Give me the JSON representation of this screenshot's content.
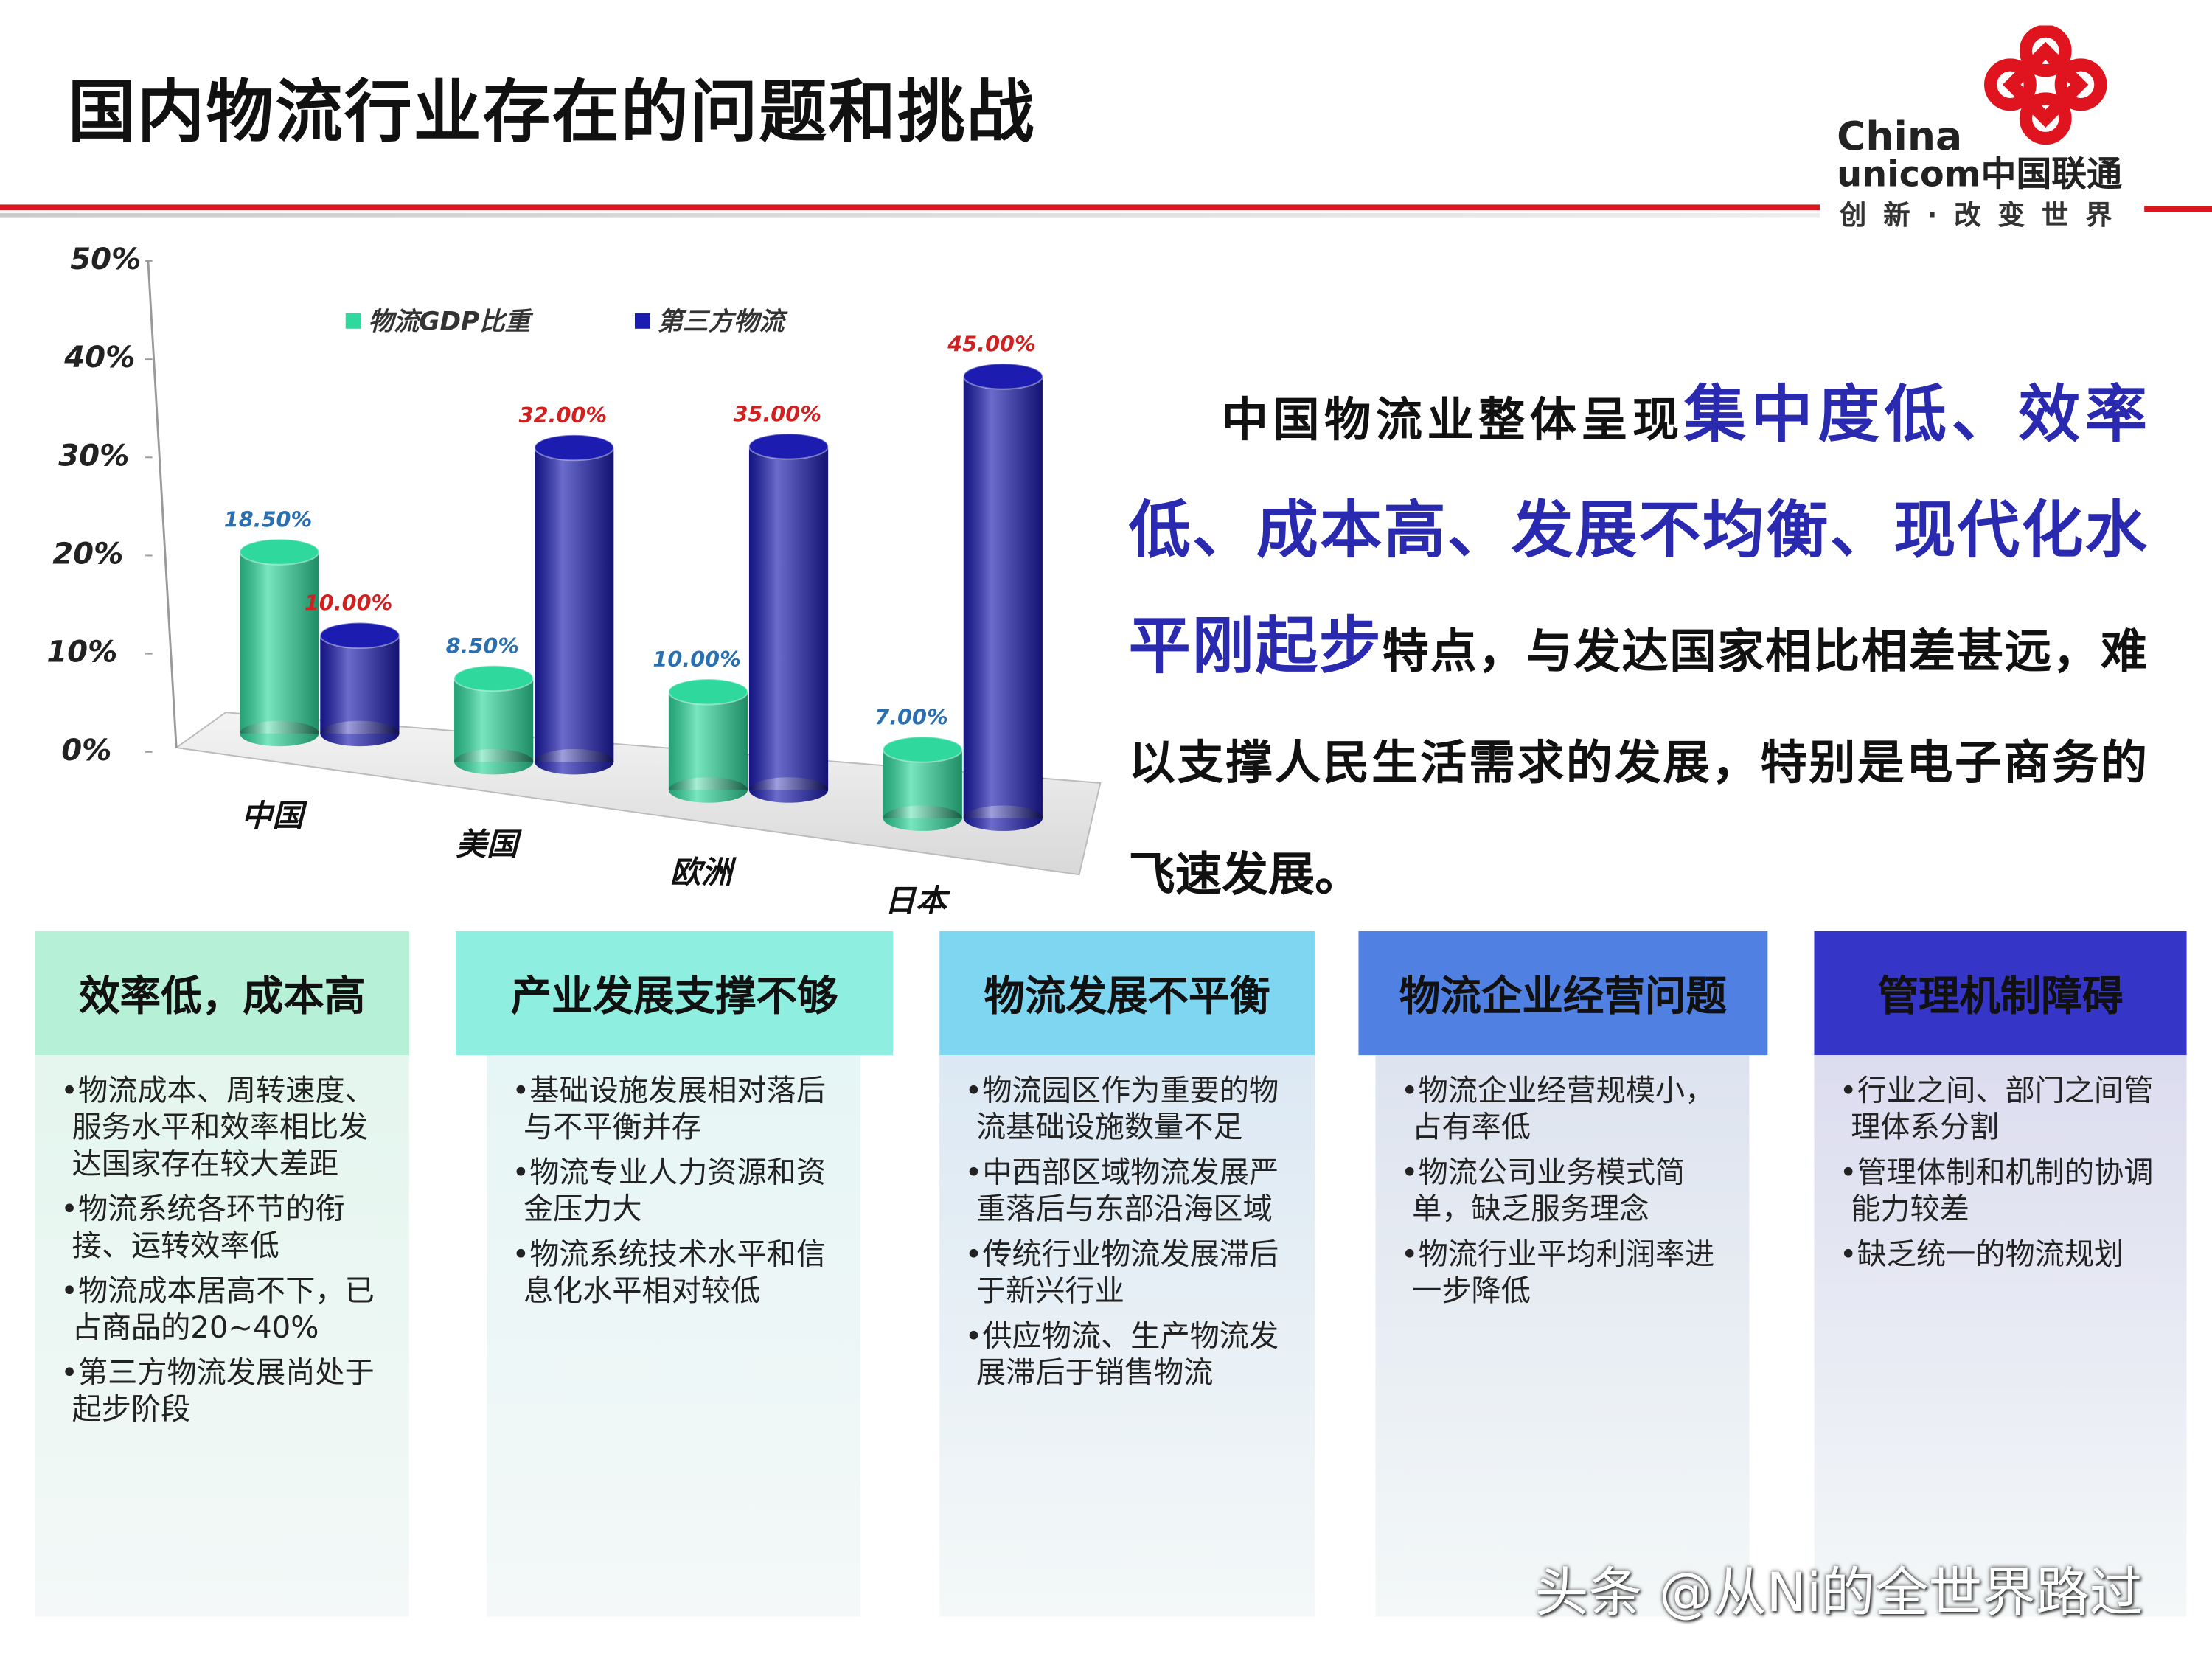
{
  "header": {
    "title": "国内物流行业存在的问题和挑战",
    "logo_line1": "China",
    "logo_line2": "unicom中国联通",
    "logo_slogan": "创新·改变世界"
  },
  "chart_data": {
    "type": "bar",
    "categories": [
      "中国",
      "美国",
      "欧洲",
      "日本"
    ],
    "series": [
      {
        "name": "物流GDP比重",
        "color": "#2fd89c",
        "values": [
          18.5,
          8.5,
          10,
          7
        ],
        "value_labels": [
          "18.50%",
          "8.50%",
          "10.00%",
          "7.00%"
        ],
        "label_color": "#2a6fb0"
      },
      {
        "name": "第三方物流",
        "color": "#1c1cb0",
        "values": [
          10,
          32,
          35,
          45
        ],
        "value_labels": [
          "10.00%",
          "32.00%",
          "35.00%",
          "45.00%"
        ],
        "label_color": "#d02020"
      }
    ],
    "ylim": [
      0,
      50
    ],
    "yticks": [
      {
        "value": 0,
        "label": "0%"
      },
      {
        "value": 10,
        "label": "10%"
      },
      {
        "value": 20,
        "label": "20%"
      },
      {
        "value": 30,
        "label": "30%"
      },
      {
        "value": 40,
        "label": "40%"
      },
      {
        "value": 50,
        "label": "50%"
      }
    ],
    "grid": false
  },
  "summary": {
    "lead": "中国物流业整体呈现",
    "highlight": "集中度低、效率低、成本高、发展不均衡、现代化水平刚起步",
    "rest": "特点，与发达国家相比相差甚远，难以支撑人民生活需求的发展，特别是电子商务的飞速发展。"
  },
  "columns": [
    {
      "title": "效率低，成本高",
      "items": [
        "•物流成本、周转速度、服务水平和效率相比发达国家存在较大差距",
        "•物流系统各环节的衔接、运转效率低",
        "•物流成本居高不下，已占商品的20~40%",
        "•第三方物流发展尚处于起步阶段"
      ]
    },
    {
      "title": "产业发展支撑不够",
      "items": [
        "•基础设施发展相对落后与不平衡并存",
        "•物流专业人力资源和资金压力大",
        "•物流系统技术水平和信息化水平相对较低"
      ]
    },
    {
      "title": "物流发展不平衡",
      "items": [
        "•物流园区作为重要的物流基础设施数量不足",
        "•中西部区域物流发展严重落后与东部沿海区域",
        "•传统行业物流发展滞后于新兴行业",
        "•供应物流、生产物流发展滞后于销售物流"
      ]
    },
    {
      "title": "物流企业经营问题",
      "items": [
        "•物流企业经营规模小，占有率低",
        "•物流公司业务模式简单，缺乏服务理念",
        "•物流行业平均利润率进一步降低"
      ]
    },
    {
      "title": "管理机制障碍",
      "items": [
        "•行业之间、部门之间管理体系分割",
        "•管理体制和机制的协调能力较差",
        "•缺乏统一的物流规划"
      ]
    }
  ],
  "watermark": "头条 @从Ni的全世界路过"
}
